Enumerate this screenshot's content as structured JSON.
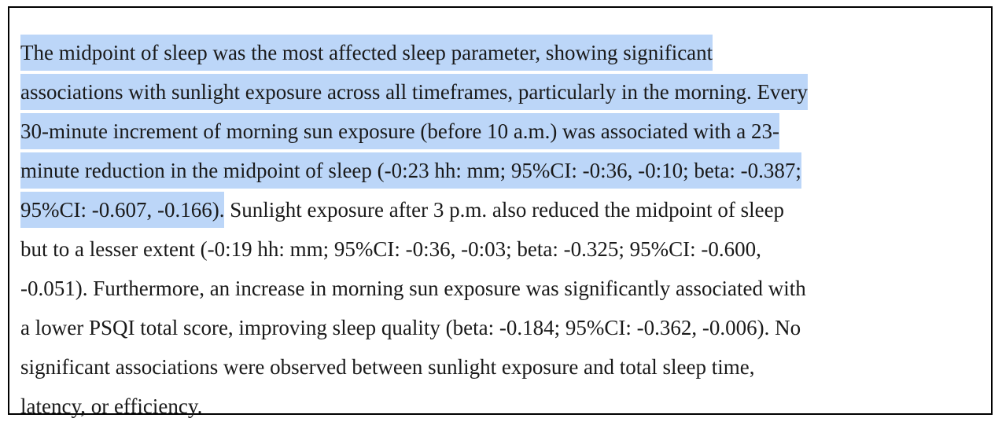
{
  "paragraph": {
    "lines": [
      {
        "selected": "The midpoint of sleep was the most affected sleep parameter, showing significant"
      },
      {
        "selected": "associations with sunlight exposure across all timeframes, particularly in the morning. Every"
      },
      {
        "selected": "30-minute increment of morning sun exposure (before 10 a.m.) was associated with a 23-"
      },
      {
        "selected": "minute reduction in the midpoint of sleep (-0:23 hh: mm; 95%CI: -0:36, -0:10; beta: -0.387;"
      },
      {
        "selected": "95%CI: -0.607, -0.166).",
        "text": " Sunlight exposure after 3 p.m. also reduced the midpoint of sleep"
      },
      {
        "text": "but to a lesser extent (-0:19 hh: mm; 95%CI: -0:36, -0:03; beta: -0.325; 95%CI: -0.600,"
      },
      {
        "text": "-0.051). Furthermore, an increase in morning sun exposure was significantly associated with"
      },
      {
        "text": "a lower PSQI total score, improving sleep quality (beta: -0.184; 95%CI: -0.362, -0.006). No"
      },
      {
        "text": "significant associations were observed between sunlight exposure and total sleep time,"
      },
      {
        "text": "latency, or efficiency."
      }
    ]
  }
}
